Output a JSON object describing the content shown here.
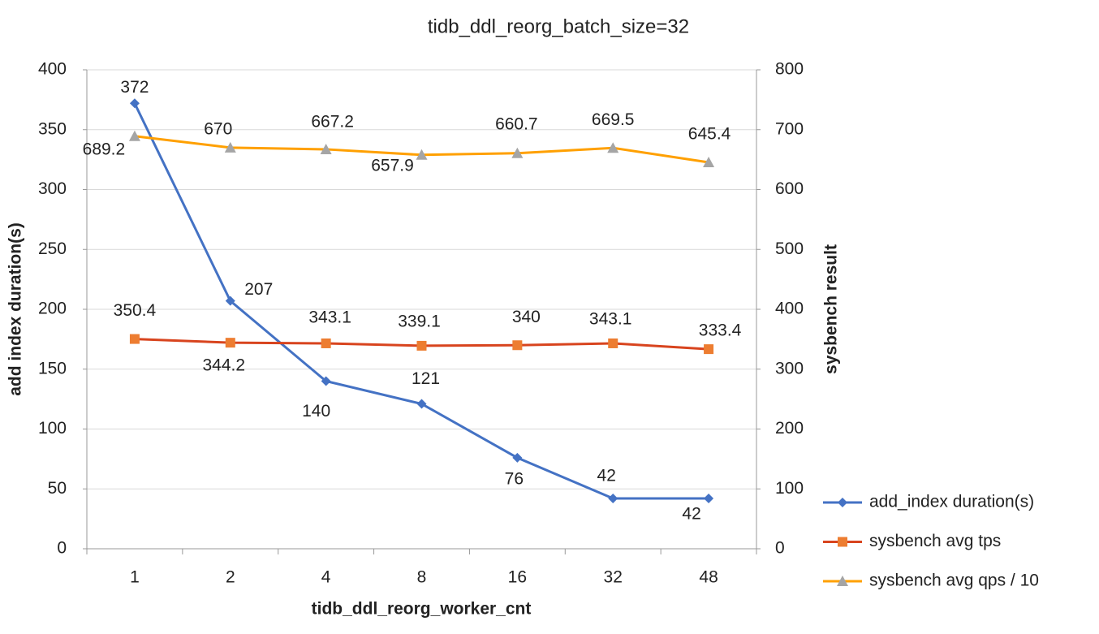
{
  "chart_data": {
    "type": "line",
    "title": "tidb_ddl_reorg_batch_size=32",
    "x_label": "tidb_ddl_reorg_worker_cnt",
    "y_label": "add index duration(s)",
    "y2_label": "sysbench result",
    "categories": [
      "1",
      "2",
      "4",
      "8",
      "16",
      "32",
      "48"
    ],
    "ylim": [
      0,
      400
    ],
    "yticks": [
      0,
      50,
      100,
      150,
      200,
      250,
      300,
      350,
      400
    ],
    "y2lim": [
      0,
      800
    ],
    "y2ticks": [
      0,
      100,
      200,
      300,
      400,
      500,
      600,
      700,
      800
    ],
    "grid": true,
    "legend": "right",
    "series": [
      {
        "name": "add_index duration(s)",
        "color": "#4472c4",
        "marker": "diamond",
        "marker_color": "#4472c4",
        "values": [
          372,
          207,
          140,
          121,
          76,
          42,
          42
        ]
      },
      {
        "name": "sysbench avg tps",
        "color": "#d8441e",
        "marker": "square",
        "marker_color": "#ed7d31",
        "axis": "y2",
        "values": [
          350.4,
          344.2,
          343.1,
          339.1,
          340,
          343.1,
          333.4
        ]
      },
      {
        "name": "sysbench avg qps / 10",
        "color": "#ffa000",
        "marker": "triangle",
        "marker_color": "#a5a5a5",
        "axis": "y2",
        "values": [
          689.2,
          670,
          667.2,
          657.9,
          660.7,
          669.5,
          645.4
        ]
      }
    ]
  }
}
